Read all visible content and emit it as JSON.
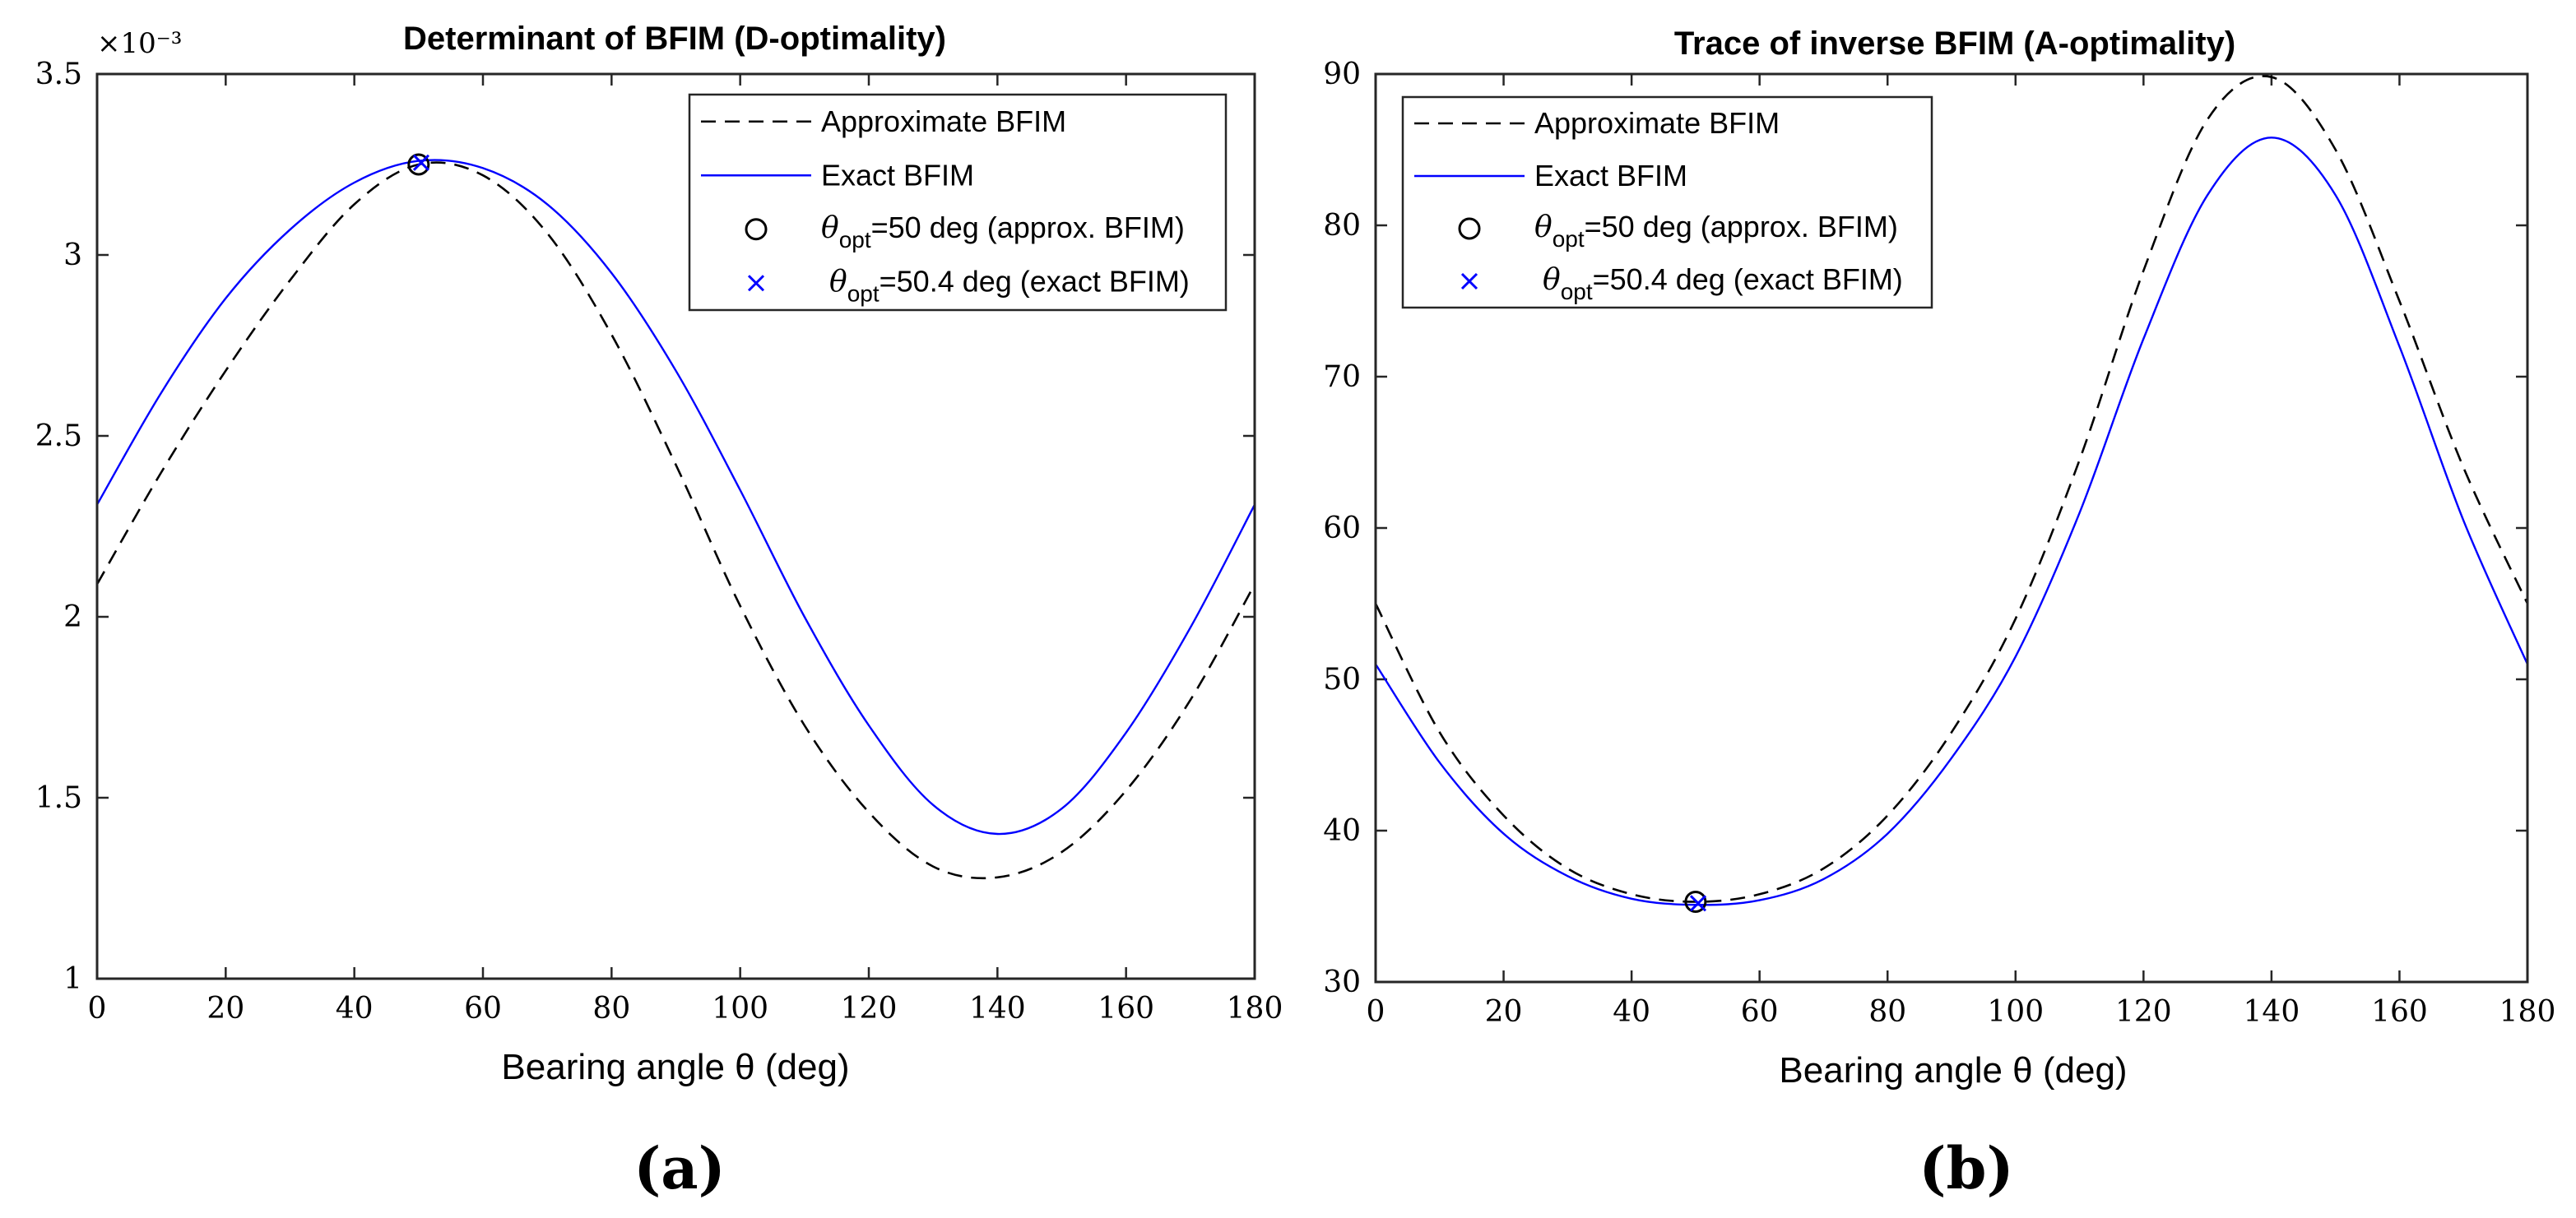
{
  "figure_labels": [
    "(a)",
    "(b)"
  ],
  "colors": {
    "approx": "#000000",
    "exact": "#0000ff",
    "axis": "#262626",
    "background": "#ffffff"
  },
  "chart_data": [
    {
      "type": "line",
      "title": "Determinant of BFIM (D-optimality)",
      "xlabel": "Bearing angle θ (deg)",
      "ylabel": "",
      "xlim": [
        0,
        180
      ],
      "ylim": [
        1,
        3.5
      ],
      "xticks": [
        0,
        20,
        40,
        60,
        80,
        100,
        120,
        140,
        160,
        180
      ],
      "yticks": [
        1,
        1.5,
        2,
        2.5,
        3,
        3.5
      ],
      "ytick_labels": [
        "1",
        "1.5",
        "2",
        "2.5",
        "3",
        "3.5"
      ],
      "y_exponent_label": "×10⁻³",
      "grid": false,
      "legend_position": "top-right",
      "series": [
        {
          "name": "Approximate BFIM",
          "style": "dashed",
          "color": "#000000",
          "x": [
            0,
            10,
            20,
            30,
            40,
            50,
            60,
            70,
            80,
            90,
            100,
            110,
            120,
            130,
            140,
            150,
            160,
            170,
            180
          ],
          "values": [
            2.09,
            2.4,
            2.68,
            2.93,
            3.14,
            3.25,
            3.22,
            3.06,
            2.78,
            2.42,
            2.03,
            1.7,
            1.46,
            1.31,
            1.28,
            1.35,
            1.52,
            1.77,
            2.09
          ]
        },
        {
          "name": "Exact BFIM",
          "style": "solid",
          "color": "#0000ff",
          "x": [
            0,
            10,
            20,
            30,
            40,
            50,
            60,
            70,
            80,
            90,
            100,
            110,
            120,
            130,
            140,
            150,
            160,
            170,
            180
          ],
          "values": [
            2.31,
            2.62,
            2.88,
            3.07,
            3.2,
            3.26,
            3.24,
            3.14,
            2.95,
            2.68,
            2.35,
            2.0,
            1.7,
            1.48,
            1.4,
            1.47,
            1.68,
            1.97,
            2.31
          ]
        }
      ],
      "markers": [
        {
          "name": "θopt=50 deg (approx. BFIM)",
          "legend_main": "θ",
          "legend_sub": "opt",
          "legend_rest": "=50 deg (approx. BFIM)",
          "shape": "circle",
          "color": "#000000",
          "x": 50,
          "y": 3.25
        },
        {
          "name": "θopt=50.4 deg (exact BFIM)",
          "legend_main": "θ",
          "legend_sub": "opt",
          "legend_rest": "=50.4 deg (exact BFIM)",
          "shape": "x",
          "color": "#0000ff",
          "x": 50.4,
          "y": 3.255
        }
      ]
    },
    {
      "type": "line",
      "title": "Trace of inverse BFIM (A-optimality)",
      "xlabel": "Bearing angle θ (deg)",
      "ylabel": "",
      "xlim": [
        0,
        180
      ],
      "ylim": [
        30,
        90
      ],
      "xticks": [
        0,
        20,
        40,
        60,
        80,
        100,
        120,
        140,
        160,
        180
      ],
      "yticks": [
        30,
        40,
        50,
        60,
        70,
        80,
        90
      ],
      "ytick_labels": [
        "30",
        "40",
        "50",
        "60",
        "70",
        "80",
        "90"
      ],
      "y_exponent_label": "",
      "grid": false,
      "legend_position": "top-left",
      "series": [
        {
          "name": "Approximate BFIM",
          "style": "dashed",
          "color": "#000000",
          "x": [
            0,
            10,
            20,
            30,
            40,
            50,
            60,
            70,
            80,
            90,
            100,
            110,
            120,
            130,
            140,
            150,
            160,
            170,
            180
          ],
          "values": [
            55.0,
            46.5,
            41.0,
            37.5,
            35.8,
            35.3,
            35.8,
            37.5,
            41.0,
            46.5,
            54.0,
            64.5,
            77.0,
            87.0,
            89.8,
            85.0,
            75.0,
            64.0,
            55.0
          ]
        },
        {
          "name": "Exact BFIM",
          "style": "solid",
          "color": "#0000ff",
          "x": [
            0,
            10,
            20,
            30,
            40,
            50,
            60,
            70,
            80,
            90,
            100,
            110,
            120,
            130,
            140,
            150,
            160,
            170,
            180
          ],
          "values": [
            51.0,
            44.5,
            39.8,
            37.0,
            35.5,
            35.1,
            35.4,
            36.8,
            39.8,
            44.8,
            51.5,
            61.0,
            72.5,
            82.0,
            85.8,
            82.0,
            72.0,
            60.5,
            51.0
          ]
        }
      ],
      "markers": [
        {
          "name": "θopt=50 deg (approx. BFIM)",
          "legend_main": "θ",
          "legend_sub": "opt",
          "legend_rest": "=50 deg (approx. BFIM)",
          "shape": "circle",
          "color": "#000000",
          "x": 50,
          "y": 35.3
        },
        {
          "name": "θopt=50.4 deg (exact BFIM)",
          "legend_main": "θ",
          "legend_sub": "opt",
          "legend_rest": "=50.4 deg (exact BFIM)",
          "shape": "x",
          "color": "#0000ff",
          "x": 50.4,
          "y": 35.2
        }
      ]
    }
  ]
}
